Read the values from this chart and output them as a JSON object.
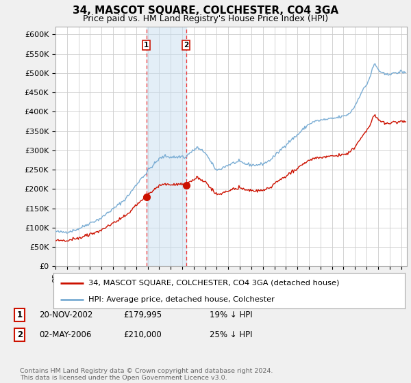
{
  "title": "34, MASCOT SQUARE, COLCHESTER, CO4 3GA",
  "subtitle": "Price paid vs. HM Land Registry's House Price Index (HPI)",
  "ylabel_ticks": [
    "£0",
    "£50K",
    "£100K",
    "£150K",
    "£200K",
    "£250K",
    "£300K",
    "£350K",
    "£400K",
    "£450K",
    "£500K",
    "£550K",
    "£600K"
  ],
  "ylim": [
    0,
    620000
  ],
  "xlim_start": 1995.0,
  "xlim_end": 2025.5,
  "background_color": "#f0f0f0",
  "plot_bg_color": "#ffffff",
  "grid_color": "#cccccc",
  "sale1_x": 2002.89,
  "sale1_y": 179995,
  "sale2_x": 2006.33,
  "sale2_y": 210000,
  "shade_color": "#c8dff0",
  "shade_alpha": 0.5,
  "vline_color": "#ee3333",
  "red_line_color": "#cc1100",
  "blue_line_color": "#7aadd4",
  "legend_label_red": "34, MASCOT SQUARE, COLCHESTER, CO4 3GA (detached house)",
  "legend_label_blue": "HPI: Average price, detached house, Colchester",
  "table_entries": [
    {
      "num": "1",
      "date": "20-NOV-2002",
      "price": "£179,995",
      "hpi": "19% ↓ HPI"
    },
    {
      "num": "2",
      "date": "02-MAY-2006",
      "price": "£210,000",
      "hpi": "25% ↓ HPI"
    }
  ],
  "footnote": "Contains HM Land Registry data © Crown copyright and database right 2024.\nThis data is licensed under the Open Government Licence v3.0.",
  "title_fontsize": 11,
  "subtitle_fontsize": 9,
  "tick_fontsize": 8
}
